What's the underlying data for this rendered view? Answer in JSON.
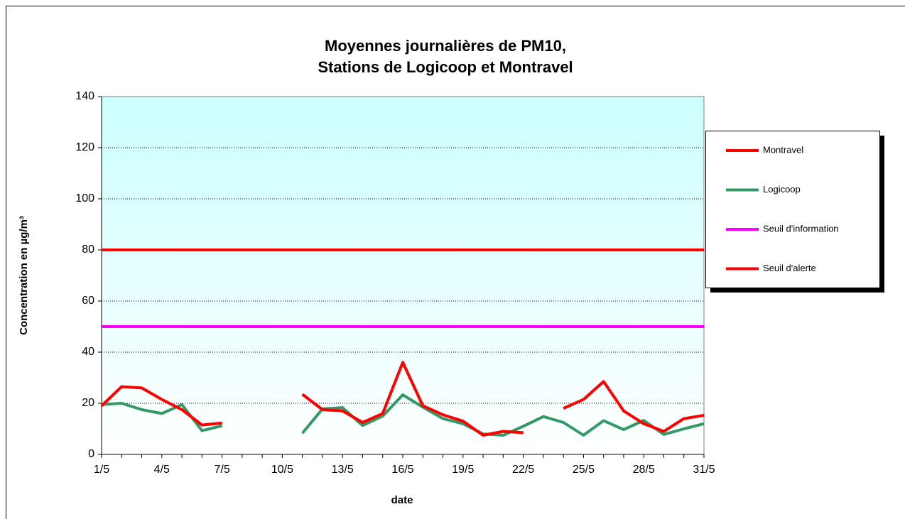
{
  "chart_data": {
    "type": "line",
    "title": [
      "Moyennes journalières de PM10,",
      "Stations de Logicoop et Montravel"
    ],
    "x_label": "date",
    "y_label": "Concentration en µg/m³",
    "categories": [
      "1/5",
      null,
      null,
      "4/5",
      null,
      null,
      "7/5",
      null,
      null,
      "10/5",
      null,
      null,
      "13/5",
      null,
      null,
      "16/5",
      null,
      null,
      "19/5",
      null,
      null,
      "22/5",
      null,
      null,
      "25/5",
      null,
      null,
      "28/5",
      null,
      null,
      "31/5"
    ],
    "ylim": [
      0,
      140
    ],
    "yticks": [
      0,
      20,
      40,
      60,
      80,
      100,
      120,
      140
    ],
    "grid": true,
    "legend": "right",
    "series": [
      {
        "name": "Montravel",
        "color": "#ff0000",
        "values": [
          19,
          26.5,
          26,
          21.5,
          17.5,
          11.5,
          12.3,
          null,
          null,
          null,
          23.5,
          17.5,
          17,
          12.5,
          16,
          36,
          19,
          15.5,
          13,
          7.5,
          9,
          8.5,
          null,
          18,
          21.5,
          28.5,
          17,
          12,
          9,
          14,
          15.3
        ]
      },
      {
        "name": "Logicoop",
        "color": "#339966",
        "values": [
          19.5,
          20,
          17.5,
          16,
          19.5,
          9.3,
          11.2,
          null,
          null,
          null,
          8.3,
          17.8,
          18.3,
          11.3,
          15,
          23.3,
          18.5,
          14,
          12,
          8,
          7.5,
          11,
          14.8,
          12.5,
          7.5,
          13.2,
          9.7,
          13.3,
          7.8,
          10,
          12
        ]
      },
      {
        "name": "Seuil d'information",
        "color": "#ff00ff",
        "values": [
          50,
          50,
          50,
          50,
          50,
          50,
          50,
          50,
          50,
          50,
          50,
          50,
          50,
          50,
          50,
          50,
          50,
          50,
          50,
          50,
          50,
          50,
          50,
          50,
          50,
          50,
          50,
          50,
          50,
          50,
          50
        ]
      },
      {
        "name": "Seuil d'alerte",
        "color": "#ff0000",
        "values": [
          80,
          80,
          80,
          80,
          80,
          80,
          80,
          80,
          80,
          80,
          80,
          80,
          80,
          80,
          80,
          80,
          80,
          80,
          80,
          80,
          80,
          80,
          80,
          80,
          80,
          80,
          80,
          80,
          80,
          80,
          80
        ]
      }
    ]
  }
}
